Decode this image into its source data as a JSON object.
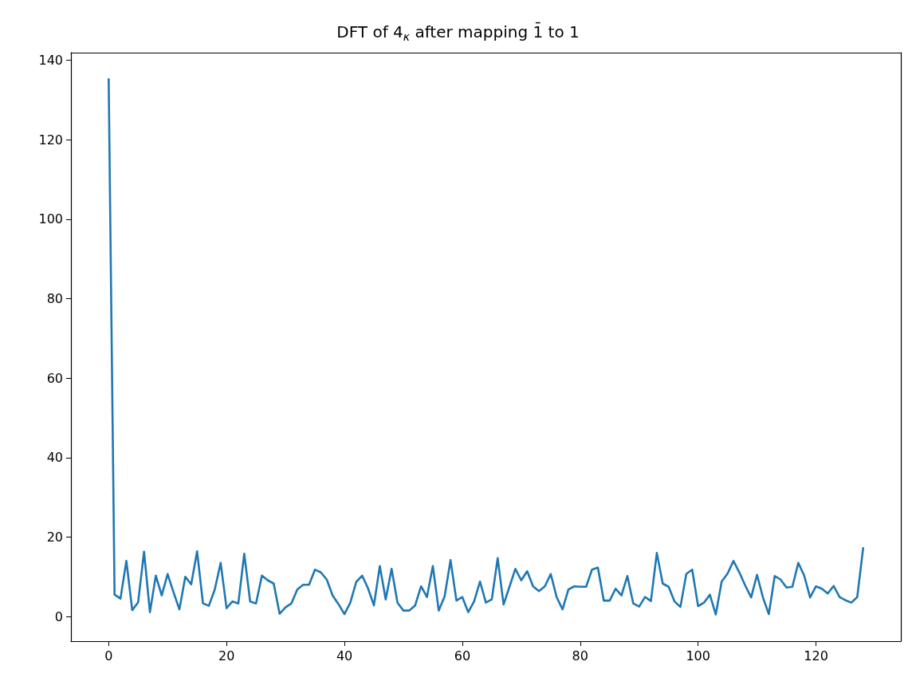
{
  "chart_data": {
    "type": "line",
    "title": "DFT of 4$_{κ}$ after mapping 1̄ to 1",
    "x": [
      0,
      1,
      2,
      3,
      4,
      5,
      6,
      7,
      8,
      9,
      10,
      11,
      12,
      13,
      14,
      15,
      16,
      17,
      18,
      19,
      20,
      21,
      22,
      23,
      24,
      25,
      26,
      27,
      28,
      29,
      30,
      31,
      32,
      33,
      34,
      35,
      36,
      37,
      38,
      39,
      40,
      41,
      42,
      43,
      44,
      45,
      46,
      47,
      48,
      49,
      50,
      51,
      52,
      53,
      54,
      55,
      56,
      57,
      58,
      59,
      60,
      61,
      62,
      63,
      64,
      65,
      66,
      67,
      68,
      69,
      70,
      71,
      72,
      73,
      74,
      75,
      76,
      77,
      78,
      79,
      80,
      81,
      82,
      83,
      84,
      85,
      86,
      87,
      88,
      89,
      90,
      91,
      92,
      93,
      94,
      95,
      96,
      97,
      98,
      99,
      100,
      101,
      102,
      103,
      104,
      105,
      106,
      107,
      108,
      109,
      110,
      111,
      112,
      113,
      114,
      115,
      116,
      117,
      118,
      119,
      120,
      121,
      122,
      123,
      124,
      125,
      126,
      127,
      128
    ],
    "series": [
      {
        "color": "#1f77b4",
        "values": [
          135.2,
          5.5,
          4.5,
          14.0,
          1.6,
          3.6,
          16.3,
          1.1,
          10.3,
          5.3,
          10.7,
          6.1,
          1.8,
          10.0,
          8.1,
          16.4,
          3.3,
          2.7,
          6.8,
          13.5,
          2.1,
          3.8,
          3.3,
          15.8,
          3.8,
          3.3,
          10.3,
          9.1,
          8.3,
          0.7,
          2.3,
          3.3,
          6.8,
          8.0,
          8.0,
          11.8,
          11.1,
          9.3,
          5.3,
          3.1,
          0.6,
          3.5,
          8.7,
          10.3,
          7.1,
          2.8,
          12.7,
          4.3,
          12.0,
          3.5,
          1.5,
          1.5,
          2.8,
          7.6,
          4.9,
          12.7,
          1.5,
          5.1,
          14.2,
          4.0,
          4.9,
          1.1,
          3.8,
          8.8,
          3.5,
          4.3,
          14.7,
          3.0,
          7.5,
          12.0,
          9.1,
          11.4,
          7.6,
          6.4,
          7.6,
          10.7,
          4.9,
          1.8,
          6.8,
          7.6,
          7.5,
          7.5,
          11.8,
          12.3,
          4.0,
          4.0,
          7.0,
          5.3,
          10.2,
          3.3,
          2.5,
          4.9,
          3.9,
          16.0,
          8.3,
          7.5,
          3.8,
          2.4,
          10.7,
          11.8,
          2.6,
          3.5,
          5.5,
          0.5,
          8.8,
          10.8,
          14.0,
          11.1,
          7.8,
          4.8,
          10.5,
          4.8,
          0.6,
          10.2,
          9.3,
          7.3,
          7.5,
          13.5,
          10.3,
          4.8,
          7.6,
          7.0,
          5.8,
          7.7,
          4.9,
          4.1,
          3.5,
          4.9,
          17.2
        ]
      }
    ],
    "xlim": [
      -6.4,
      134.4
    ],
    "xticks": [
      0,
      20,
      40,
      60,
      80,
      100,
      120
    ],
    "ylim": [
      -6.2,
      141.9
    ],
    "yticks": [
      0,
      20,
      40,
      60,
      80,
      100,
      120,
      140
    ],
    "grid": false,
    "marker": "none",
    "line_style": "solid"
  }
}
